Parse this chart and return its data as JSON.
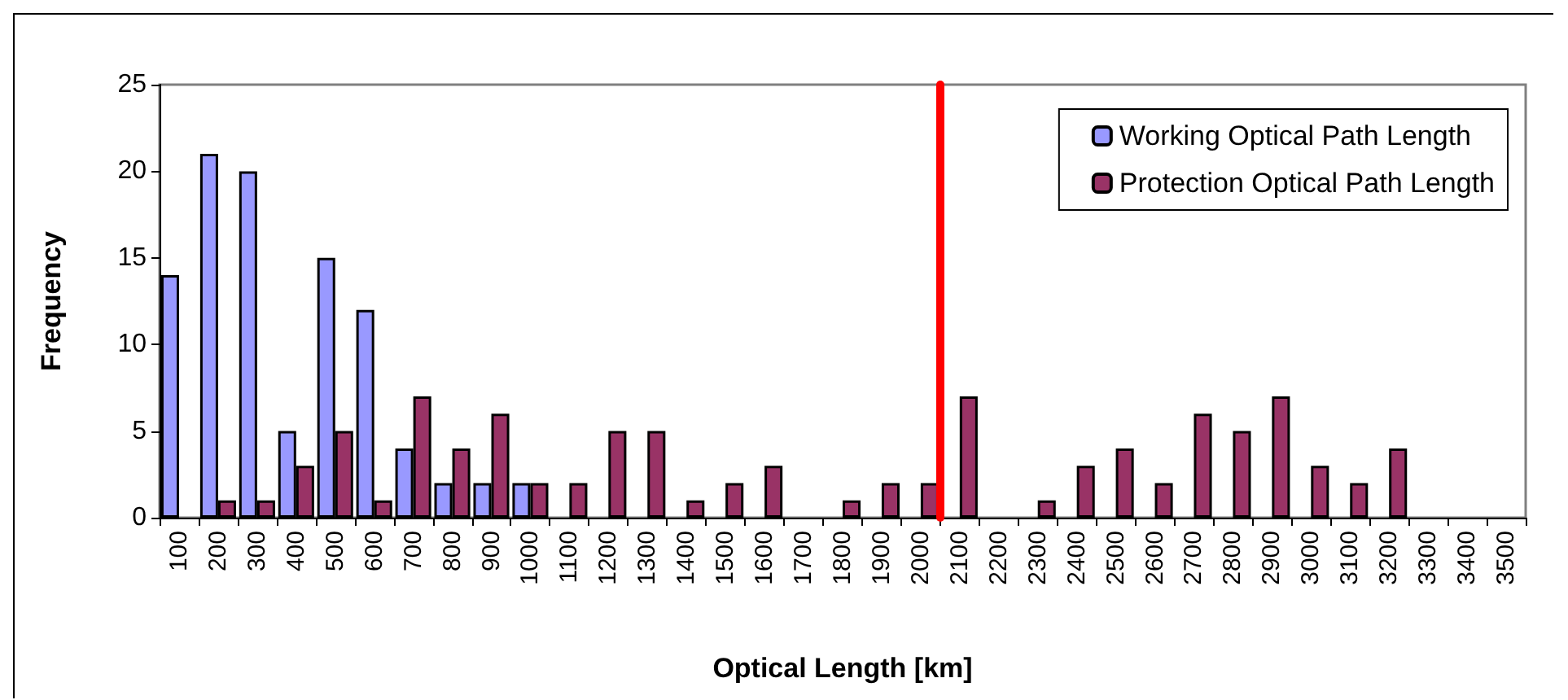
{
  "chart_data": {
    "type": "bar",
    "xlabel": "Optical Length [km]",
    "ylabel": "Frequency",
    "x": [
      100,
      200,
      300,
      400,
      500,
      600,
      700,
      800,
      900,
      1000,
      1100,
      1200,
      1300,
      1400,
      1500,
      1600,
      1700,
      1800,
      1900,
      2000,
      2100,
      2200,
      2300,
      2400,
      2500,
      2600,
      2700,
      2800,
      2900,
      3000,
      3100,
      3200,
      3300,
      3400,
      3500
    ],
    "series": [
      {
        "name": "Working Optical Path Length",
        "color": "#9999ff",
        "values": [
          14,
          21,
          20,
          5,
          15,
          12,
          4,
          2,
          2,
          2,
          0,
          0,
          0,
          0,
          0,
          0,
          0,
          0,
          0,
          0,
          0,
          0,
          0,
          0,
          0,
          0,
          0,
          0,
          0,
          0,
          0,
          0,
          0,
          0,
          0
        ]
      },
      {
        "name": "Protection Optical Path Length",
        "color": "#993366",
        "values": [
          0,
          1,
          1,
          3,
          5,
          1,
          7,
          4,
          6,
          2,
          2,
          5,
          5,
          1,
          2,
          3,
          0,
          1,
          2,
          2,
          7,
          0,
          1,
          3,
          4,
          2,
          6,
          5,
          7,
          3,
          2,
          4,
          0,
          0,
          0
        ]
      }
    ],
    "xlim": [
      50,
      3550
    ],
    "xticks": [
      100,
      200,
      300,
      400,
      500,
      600,
      700,
      800,
      900,
      1000,
      1100,
      1200,
      1300,
      1400,
      1500,
      1600,
      1700,
      1800,
      1900,
      2000,
      2100,
      2200,
      2300,
      2400,
      2500,
      2600,
      2700,
      2800,
      2900,
      3000,
      3100,
      3200,
      3300,
      3400,
      3500
    ],
    "ylim": [
      0,
      25
    ],
    "yticks": [
      0,
      5,
      10,
      15,
      20,
      25
    ],
    "grid": false,
    "legend": "top right",
    "ref_lines": [
      {
        "axis": "x",
        "value": 2050,
        "color": "#ff0000"
      }
    ]
  }
}
